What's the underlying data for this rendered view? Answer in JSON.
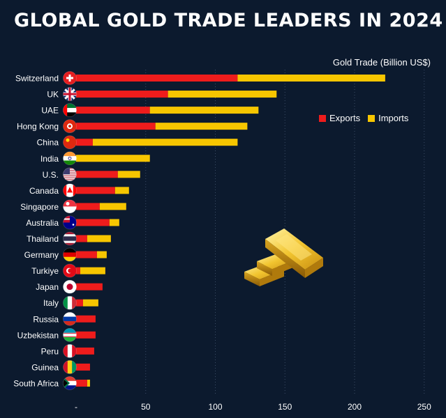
{
  "title": "GLOBAL GOLD TRADE LEADERS IN 2024",
  "unit_label": "Gold Trade (Billion US$)",
  "legend": {
    "exports": "Exports",
    "imports": "Imports"
  },
  "colors": {
    "exports": "#ee1c1c",
    "imports": "#f7c600",
    "background": "#0c1a2e",
    "grid": "#3b4d66"
  },
  "chart_data": {
    "type": "bar",
    "orientation": "horizontal",
    "stacked": true,
    "title": "GLOBAL GOLD TRADE LEADERS IN 2024",
    "xlabel": "Gold Trade (Billion US$)",
    "xlim": [
      0,
      250
    ],
    "xticks": [
      "-",
      "50",
      "100",
      "150",
      "200",
      "250"
    ],
    "categories": [
      "Switzerland",
      "UK",
      "UAE",
      "Hong Kong",
      "China",
      "India",
      "U.S.",
      "Canada",
      "Singapore",
      "Australia",
      "Thailand",
      "Germany",
      "Turkiye",
      "Japan",
      "Italy",
      "Russia",
      "Uzbekistan",
      "Peru",
      "Guinea",
      "South Africa"
    ],
    "flags": [
      "switzerland-flag-icon",
      "uk-flag-icon",
      "uae-flag-icon",
      "hong-kong-flag-icon",
      "china-flag-icon",
      "india-flag-icon",
      "us-flag-icon",
      "canada-flag-icon",
      "singapore-flag-icon",
      "australia-flag-icon",
      "thailand-flag-icon",
      "germany-flag-icon",
      "turkiye-flag-icon",
      "japan-flag-icon",
      "italy-flag-icon",
      "russia-flag-icon",
      "uzbekistan-flag-icon",
      "peru-flag-icon",
      "guinea-flag-icon",
      "south-africa-flag-icon"
    ],
    "series": [
      {
        "name": "Exports",
        "values": [
          116,
          66,
          53,
          57,
          12,
          0,
          30,
          28,
          17,
          24,
          8,
          15,
          3,
          19,
          5,
          14,
          14,
          13,
          10,
          8
        ]
      },
      {
        "name": "Imports",
        "values": [
          106,
          78,
          78,
          66,
          104,
          53,
          16,
          10,
          19,
          7,
          17,
          7,
          18,
          0,
          11,
          0,
          0,
          0,
          0,
          2
        ]
      }
    ]
  }
}
